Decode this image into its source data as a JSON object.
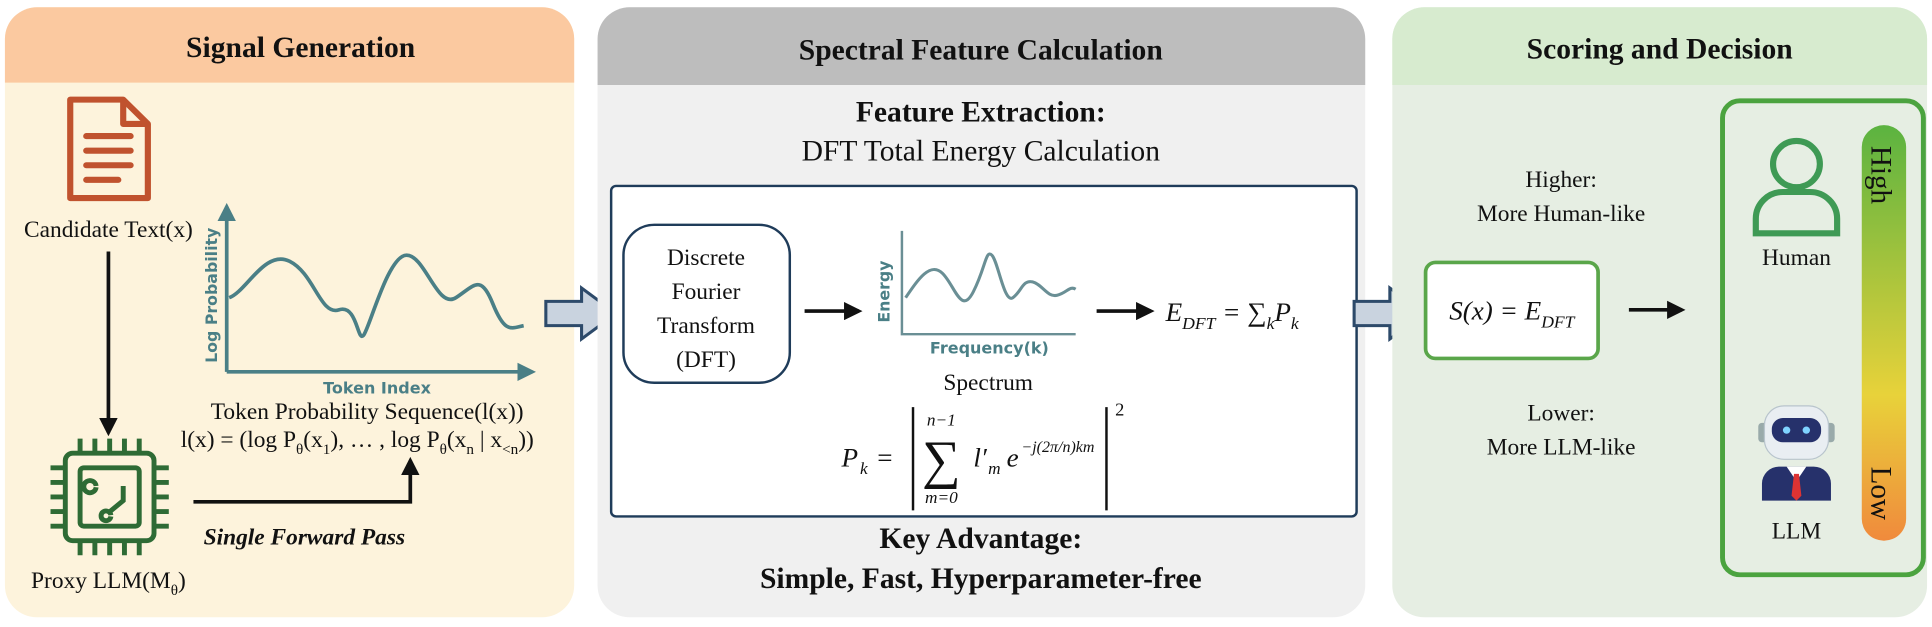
{
  "signal_generation": {
    "title": "Signal Generation",
    "candidate_text": "Candidate Text(x)",
    "chart_y_label": "Log Probability",
    "chart_x_label": "Token Index",
    "sequence_label": "Token Probability Sequence(l(x))",
    "sequence_formula": [
      {
        "text": "l(x) = (log P"
      },
      {
        "text": "θ",
        "shift": "sub"
      },
      {
        "text": "(x"
      },
      {
        "text": "1",
        "shift": "sub"
      },
      {
        "text": "), … , log P"
      },
      {
        "text": "θ",
        "shift": "sub"
      },
      {
        "text": "(x"
      },
      {
        "text": "n",
        "shift": "sub"
      },
      {
        "text": " | x"
      },
      {
        "text": "<n",
        "shift": "sub"
      },
      {
        "text": "))"
      }
    ],
    "forward_pass": "Single Forward Pass",
    "proxy_llm": [
      {
        "text": "Proxy LLM(M"
      },
      {
        "text": "θ",
        "shift": "sub"
      },
      {
        "text": ")"
      }
    ]
  },
  "spectral_feature": {
    "title": "Spectral Feature Calculation",
    "feature_heading": "Feature Extraction:",
    "feature_subheading": "DFT Total Energy Calculation",
    "dft_box": [
      "Discrete",
      "Fourier",
      "Transform",
      "(DFT)"
    ],
    "energy_label": "Energy",
    "frequency_label": "Frequency(k)",
    "spectrum_label": "Spectrum",
    "energy_formula": [
      {
        "text": "E"
      },
      {
        "text": "DFT",
        "shift": "sub"
      },
      {
        "text": " = ∑"
      },
      {
        "text": "k",
        "shift": "sub"
      },
      {
        "text": "P"
      },
      {
        "text": "k",
        "shift": "sub"
      }
    ],
    "pk_formula": {
      "lhs": "P",
      "lhs_sub": "k",
      "equals": "=",
      "sum": "∑",
      "upper": "n−1",
      "lower": "m=0",
      "term": "l′",
      "term_sub": "m",
      "base": "e",
      "exponent": "−j(2π/n)km",
      "power": "2"
    },
    "advantage_heading": "Key Advantage:",
    "advantage": "Simple, Fast, Hyperparameter-free"
  },
  "scoring": {
    "title": "Scoring and Decision",
    "higher": [
      "Higher:",
      "More Human-like"
    ],
    "score_formula": [
      {
        "text": "S(x) = E"
      },
      {
        "text": "DFT",
        "shift": "sub"
      }
    ],
    "lower": [
      "Lower:",
      "More LLM-like"
    ],
    "human": "Human",
    "llm": "LLM",
    "high": "High",
    "low": "Low"
  }
}
